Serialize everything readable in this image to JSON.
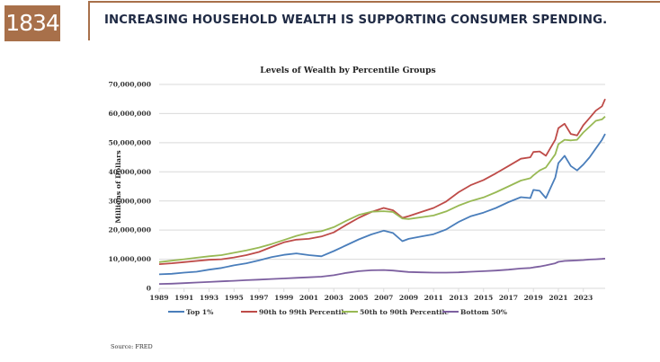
{
  "header": {
    "logo_text": "1834",
    "headline": "INCREASING HOUSEHOLD WEALTH IS SUPPORTING CONSUMER SPENDING.",
    "brand_color": "#a8704a",
    "headline_color": "#1f2a44"
  },
  "source": "Source: FRED",
  "chart_data": {
    "type": "line",
    "title": "Levels of Wealth by Percentile Groups",
    "xlabel": "",
    "ylabel": "Millions of Dollars",
    "xlim": [
      1989,
      2024.75
    ],
    "ylim": [
      0,
      70000000
    ],
    "yticks": [
      0,
      10000000,
      20000000,
      30000000,
      40000000,
      50000000,
      60000000,
      70000000
    ],
    "ytick_labels": [
      "0",
      "10,000,000",
      "20,000,000",
      "30,000,000",
      "40,000,000",
      "50,000,000",
      "60,000,000",
      "70,000,000"
    ],
    "xticks": [
      1989,
      1991,
      1993,
      1995,
      1997,
      1999,
      2001,
      2003,
      2005,
      2007,
      2009,
      2011,
      2013,
      2015,
      2017,
      2019,
      2021,
      2023
    ],
    "xtick_labels": [
      "1989",
      "1991",
      "1993",
      "1995",
      "1997",
      "1999",
      "2001",
      "2003",
      "2005",
      "2007",
      "2009",
      "2011",
      "2013",
      "2015",
      "2017",
      "2019",
      "2021",
      "2023"
    ],
    "grid": true,
    "legend_position": "bottom",
    "x": [
      1989,
      1990,
      1991,
      1992,
      1993,
      1994,
      1995,
      1996,
      1997,
      1998,
      1999,
      2000,
      2001,
      2002,
      2003,
      2004,
      2005,
      2006,
      2007,
      2007.75,
      2008.5,
      2009,
      2010,
      2011,
      2012,
      2013,
      2014,
      2015,
      2016,
      2017,
      2018,
      2018.75,
      2019,
      2019.5,
      2020,
      2020.75,
      2021,
      2021.5,
      2022,
      2022.5,
      2023,
      2023.5,
      2024,
      2024.5,
      2024.75
    ],
    "series": [
      {
        "name": "Top 1%",
        "color": "#4a7ebb",
        "values": [
          4800000,
          5000000,
          5400000,
          5700000,
          6400000,
          7000000,
          7900000,
          8600000,
          9600000,
          10700000,
          11500000,
          12000000,
          11400000,
          11000000,
          12800000,
          14800000,
          16800000,
          18500000,
          19800000,
          19000000,
          16200000,
          17000000,
          17800000,
          18600000,
          20200000,
          22800000,
          24800000,
          26000000,
          27600000,
          29600000,
          31300000,
          31000000,
          33800000,
          33500000,
          31000000,
          38000000,
          43000000,
          45500000,
          42000000,
          40500000,
          42500000,
          45000000,
          48000000,
          51000000,
          53000000
        ]
      },
      {
        "name": "90th to 99th Percentile",
        "color": "#be4b48",
        "values": [
          8300000,
          8600000,
          9000000,
          9400000,
          9800000,
          10000000,
          10600000,
          11400000,
          12500000,
          14200000,
          15800000,
          16700000,
          17000000,
          17800000,
          19200000,
          21800000,
          24200000,
          26200000,
          27600000,
          26800000,
          24200000,
          24800000,
          26200000,
          27600000,
          29800000,
          33000000,
          35500000,
          37200000,
          39500000,
          42000000,
          44500000,
          45000000,
          46800000,
          47000000,
          45500000,
          51000000,
          55000000,
          56500000,
          53000000,
          52500000,
          56000000,
          58500000,
          61000000,
          62500000,
          65000000
        ]
      },
      {
        "name": "50th to 90th Percentile",
        "color": "#98b954",
        "values": [
          9000000,
          9500000,
          10000000,
          10500000,
          11000000,
          11400000,
          12200000,
          13000000,
          14000000,
          15200000,
          16600000,
          18000000,
          19100000,
          19600000,
          21000000,
          23200000,
          25200000,
          26300000,
          26500000,
          26200000,
          24000000,
          23800000,
          24400000,
          25000000,
          26400000,
          28400000,
          30000000,
          31200000,
          33000000,
          35000000,
          37000000,
          37800000,
          38800000,
          40500000,
          41500000,
          46000000,
          49500000,
          51000000,
          50800000,
          51000000,
          53500000,
          55500000,
          57500000,
          58000000,
          59000000
        ]
      },
      {
        "name": "Bottom 50%",
        "color": "#7d60a0",
        "values": [
          1500000,
          1600000,
          1800000,
          2000000,
          2200000,
          2400000,
          2600000,
          2800000,
          3000000,
          3200000,
          3400000,
          3600000,
          3800000,
          4000000,
          4500000,
          5300000,
          5900000,
          6200000,
          6300000,
          6100000,
          5800000,
          5600000,
          5500000,
          5400000,
          5400000,
          5500000,
          5700000,
          5900000,
          6100000,
          6400000,
          6800000,
          7000000,
          7200000,
          7500000,
          7900000,
          8600000,
          9100000,
          9400000,
          9500000,
          9600000,
          9700000,
          9900000,
          10000000,
          10100000,
          10200000
        ]
      }
    ]
  }
}
